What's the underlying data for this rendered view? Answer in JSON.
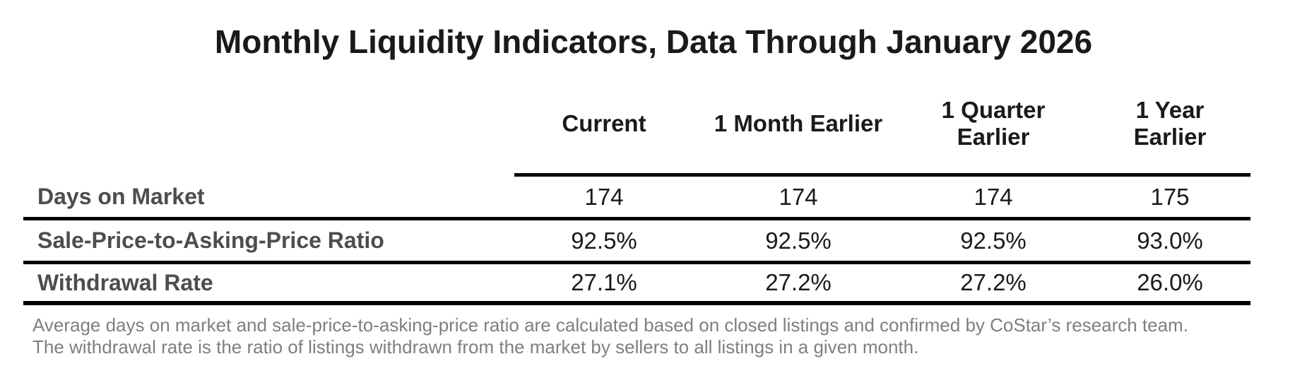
{
  "title": "Monthly Liquidity Indicators, Data Through January 2026",
  "table": {
    "columns": [
      {
        "lines": [
          "Current",
          ""
        ]
      },
      {
        "lines": [
          "1 Month Earlier",
          ""
        ]
      },
      {
        "lines": [
          "1 Quarter",
          "Earlier"
        ]
      },
      {
        "lines": [
          "1 Year",
          "Earlier"
        ]
      }
    ],
    "rows": [
      {
        "label": "Days on Market",
        "values": [
          "174",
          "174",
          "174",
          "175"
        ]
      },
      {
        "label": "Sale-Price-to-Asking-Price Ratio",
        "values": [
          "92.5%",
          "92.5%",
          "92.5%",
          "93.0%"
        ]
      },
      {
        "label": "Withdrawal Rate",
        "values": [
          "27.1%",
          "27.2%",
          "27.2%",
          "26.0%"
        ]
      }
    ]
  },
  "footnote": {
    "lines": [
      "Average days on market and sale-price-to-asking-price ratio are calculated based on closed listings and confirmed by CoStar’s research team.",
      "The withdrawal rate is the ratio of listings withdrawn from the market by sellers to all listings in a given month."
    ]
  },
  "colors": {
    "title_text": "#1a1a1a",
    "value_text": "#1a1a1a",
    "row_label_text": "#4d4d4d",
    "footnote_text": "#7f7f7f",
    "rule_line": "#000000",
    "background": "#ffffff"
  },
  "chart_data": {
    "type": "table",
    "title": "Monthly Liquidity Indicators, Data Through January 2026",
    "columns": [
      "Current",
      "1 Month Earlier",
      "1 Quarter Earlier",
      "1 Year Earlier"
    ],
    "rows": [
      {
        "label": "Days on Market",
        "values": [
          174,
          174,
          174,
          175
        ],
        "unit": "days"
      },
      {
        "label": "Sale-Price-to-Asking-Price Ratio",
        "values": [
          92.5,
          92.5,
          92.5,
          93.0
        ],
        "unit": "%"
      },
      {
        "label": "Withdrawal Rate",
        "values": [
          27.1,
          27.2,
          27.2,
          26.0
        ],
        "unit": "%"
      }
    ],
    "footnote": "Average days on market and sale-price-to-asking-price ratio are calculated based on closed listings and confirmed by CoStar’s research team. The withdrawal rate is the ratio of listings withdrawn from the market by sellers to all listings in a given month."
  }
}
